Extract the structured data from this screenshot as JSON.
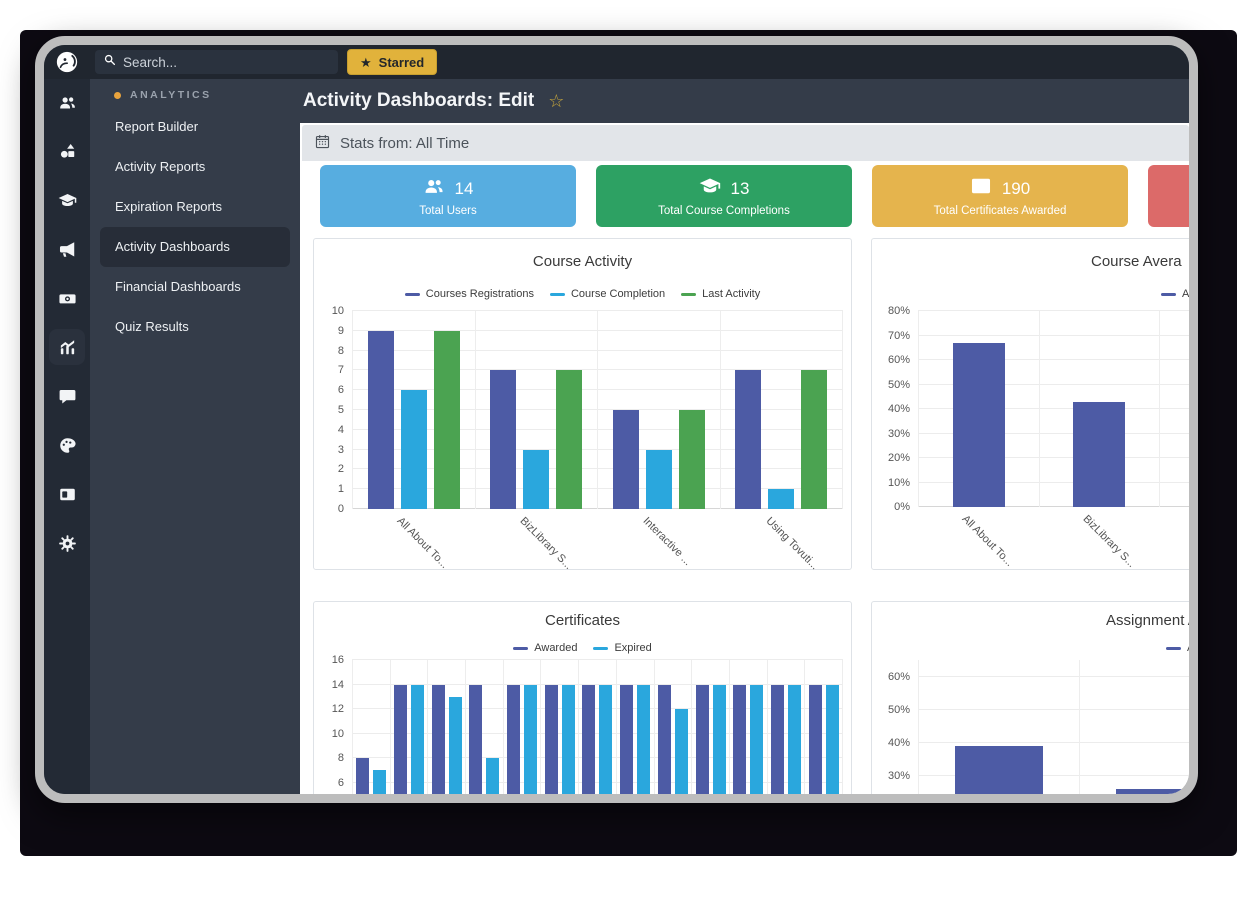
{
  "topbar": {
    "search_placeholder": "Search...",
    "starred_label": "Starred",
    "star_glyph": "★"
  },
  "rail": {
    "icons": [
      "users",
      "content-shapes",
      "graduation-cap",
      "megaphone",
      "money",
      "analytics-chart",
      "chat",
      "palette",
      "card",
      "gear"
    ],
    "active": "analytics-chart"
  },
  "sidebar": {
    "section_label": "ANALYTICS",
    "items": [
      {
        "label": "Report Builder",
        "active": false
      },
      {
        "label": "Activity Reports",
        "active": false
      },
      {
        "label": "Expiration Reports",
        "active": false
      },
      {
        "label": "Activity Dashboards",
        "active": true
      },
      {
        "label": "Financial Dashboards",
        "active": false
      },
      {
        "label": "Quiz Results",
        "active": false
      }
    ]
  },
  "header": {
    "title": "Activity Dashboards: Edit",
    "favorite_glyph": "☆"
  },
  "stats_bar": {
    "label": "Stats from: All Time"
  },
  "stat_cards": [
    {
      "value": "14",
      "label": "Total Users",
      "color": "#57ade0",
      "icon": "users-icon"
    },
    {
      "value": "13",
      "label": "Total Course Completions",
      "color": "#2da163",
      "icon": "graduation-cap-icon"
    },
    {
      "value": "190",
      "label": "Total Certificates Awarded",
      "color": "#e5b44d",
      "icon": "certificate-icon"
    },
    {
      "value": "",
      "label": "",
      "color": "#dc6a69",
      "icon": ""
    }
  ],
  "chart_data": [
    {
      "type": "bar",
      "title": "Course Activity",
      "categories": [
        "All About To...",
        "BizLibrary S...",
        "Interactive ...",
        "Using Tovuti..."
      ],
      "series": [
        {
          "name": "Courses Registrations",
          "color": "#4d5ba5",
          "values": [
            9,
            7,
            5,
            7
          ]
        },
        {
          "name": "Course Completion",
          "color": "#2aa7dd",
          "values": [
            6,
            3,
            3,
            1
          ]
        },
        {
          "name": "Last Activity",
          "color": "#4ba351",
          "values": [
            9,
            7,
            5,
            7
          ]
        }
      ],
      "ylim": [
        0,
        10
      ],
      "yticks": [
        10,
        9,
        8,
        7,
        6,
        5,
        4,
        3,
        2,
        1,
        0
      ],
      "percent": false,
      "grid": true,
      "legend_position": "top"
    },
    {
      "type": "bar",
      "title": "Course Avera",
      "categories": [
        "All About To...",
        "BizLibrary S..."
      ],
      "series": [
        {
          "name": "Av",
          "color": "#4d5ba5",
          "values": [
            67,
            43
          ]
        }
      ],
      "ylim": [
        0,
        80
      ],
      "yticks": [
        80,
        70,
        60,
        50,
        40,
        30,
        20,
        10,
        0
      ],
      "percent": true,
      "grid": true,
      "legend_position": "top"
    },
    {
      "type": "bar",
      "title": "Certificates",
      "categories": [
        "",
        "",
        "",
        "",
        "",
        "",
        "",
        "",
        "",
        "",
        "",
        "",
        ""
      ],
      "series": [
        {
          "name": "Awarded",
          "color": "#4d5ba5",
          "values": [
            8,
            14,
            14,
            14,
            14,
            14,
            14,
            14,
            14,
            14,
            14,
            14,
            14
          ]
        },
        {
          "name": "Expired",
          "color": "#2aa7dd",
          "values": [
            7,
            14,
            13,
            8,
            14,
            14,
            14,
            14,
            12,
            14,
            14,
            14,
            14
          ]
        }
      ],
      "ylim": [
        0,
        16
      ],
      "yticks": [
        16,
        14,
        12,
        10,
        8,
        6
      ],
      "percent": false,
      "grid": true,
      "legend_position": "top"
    },
    {
      "type": "bar",
      "title": "Assignment Av",
      "categories": [
        "",
        ""
      ],
      "series": [
        {
          "name": "Av",
          "color": "#4d5ba5",
          "values": [
            39,
            26
          ]
        }
      ],
      "ylim": [
        0,
        65
      ],
      "yticks": [
        60,
        50,
        40,
        30
      ],
      "percent": true,
      "grid": true,
      "legend_position": "top"
    }
  ]
}
